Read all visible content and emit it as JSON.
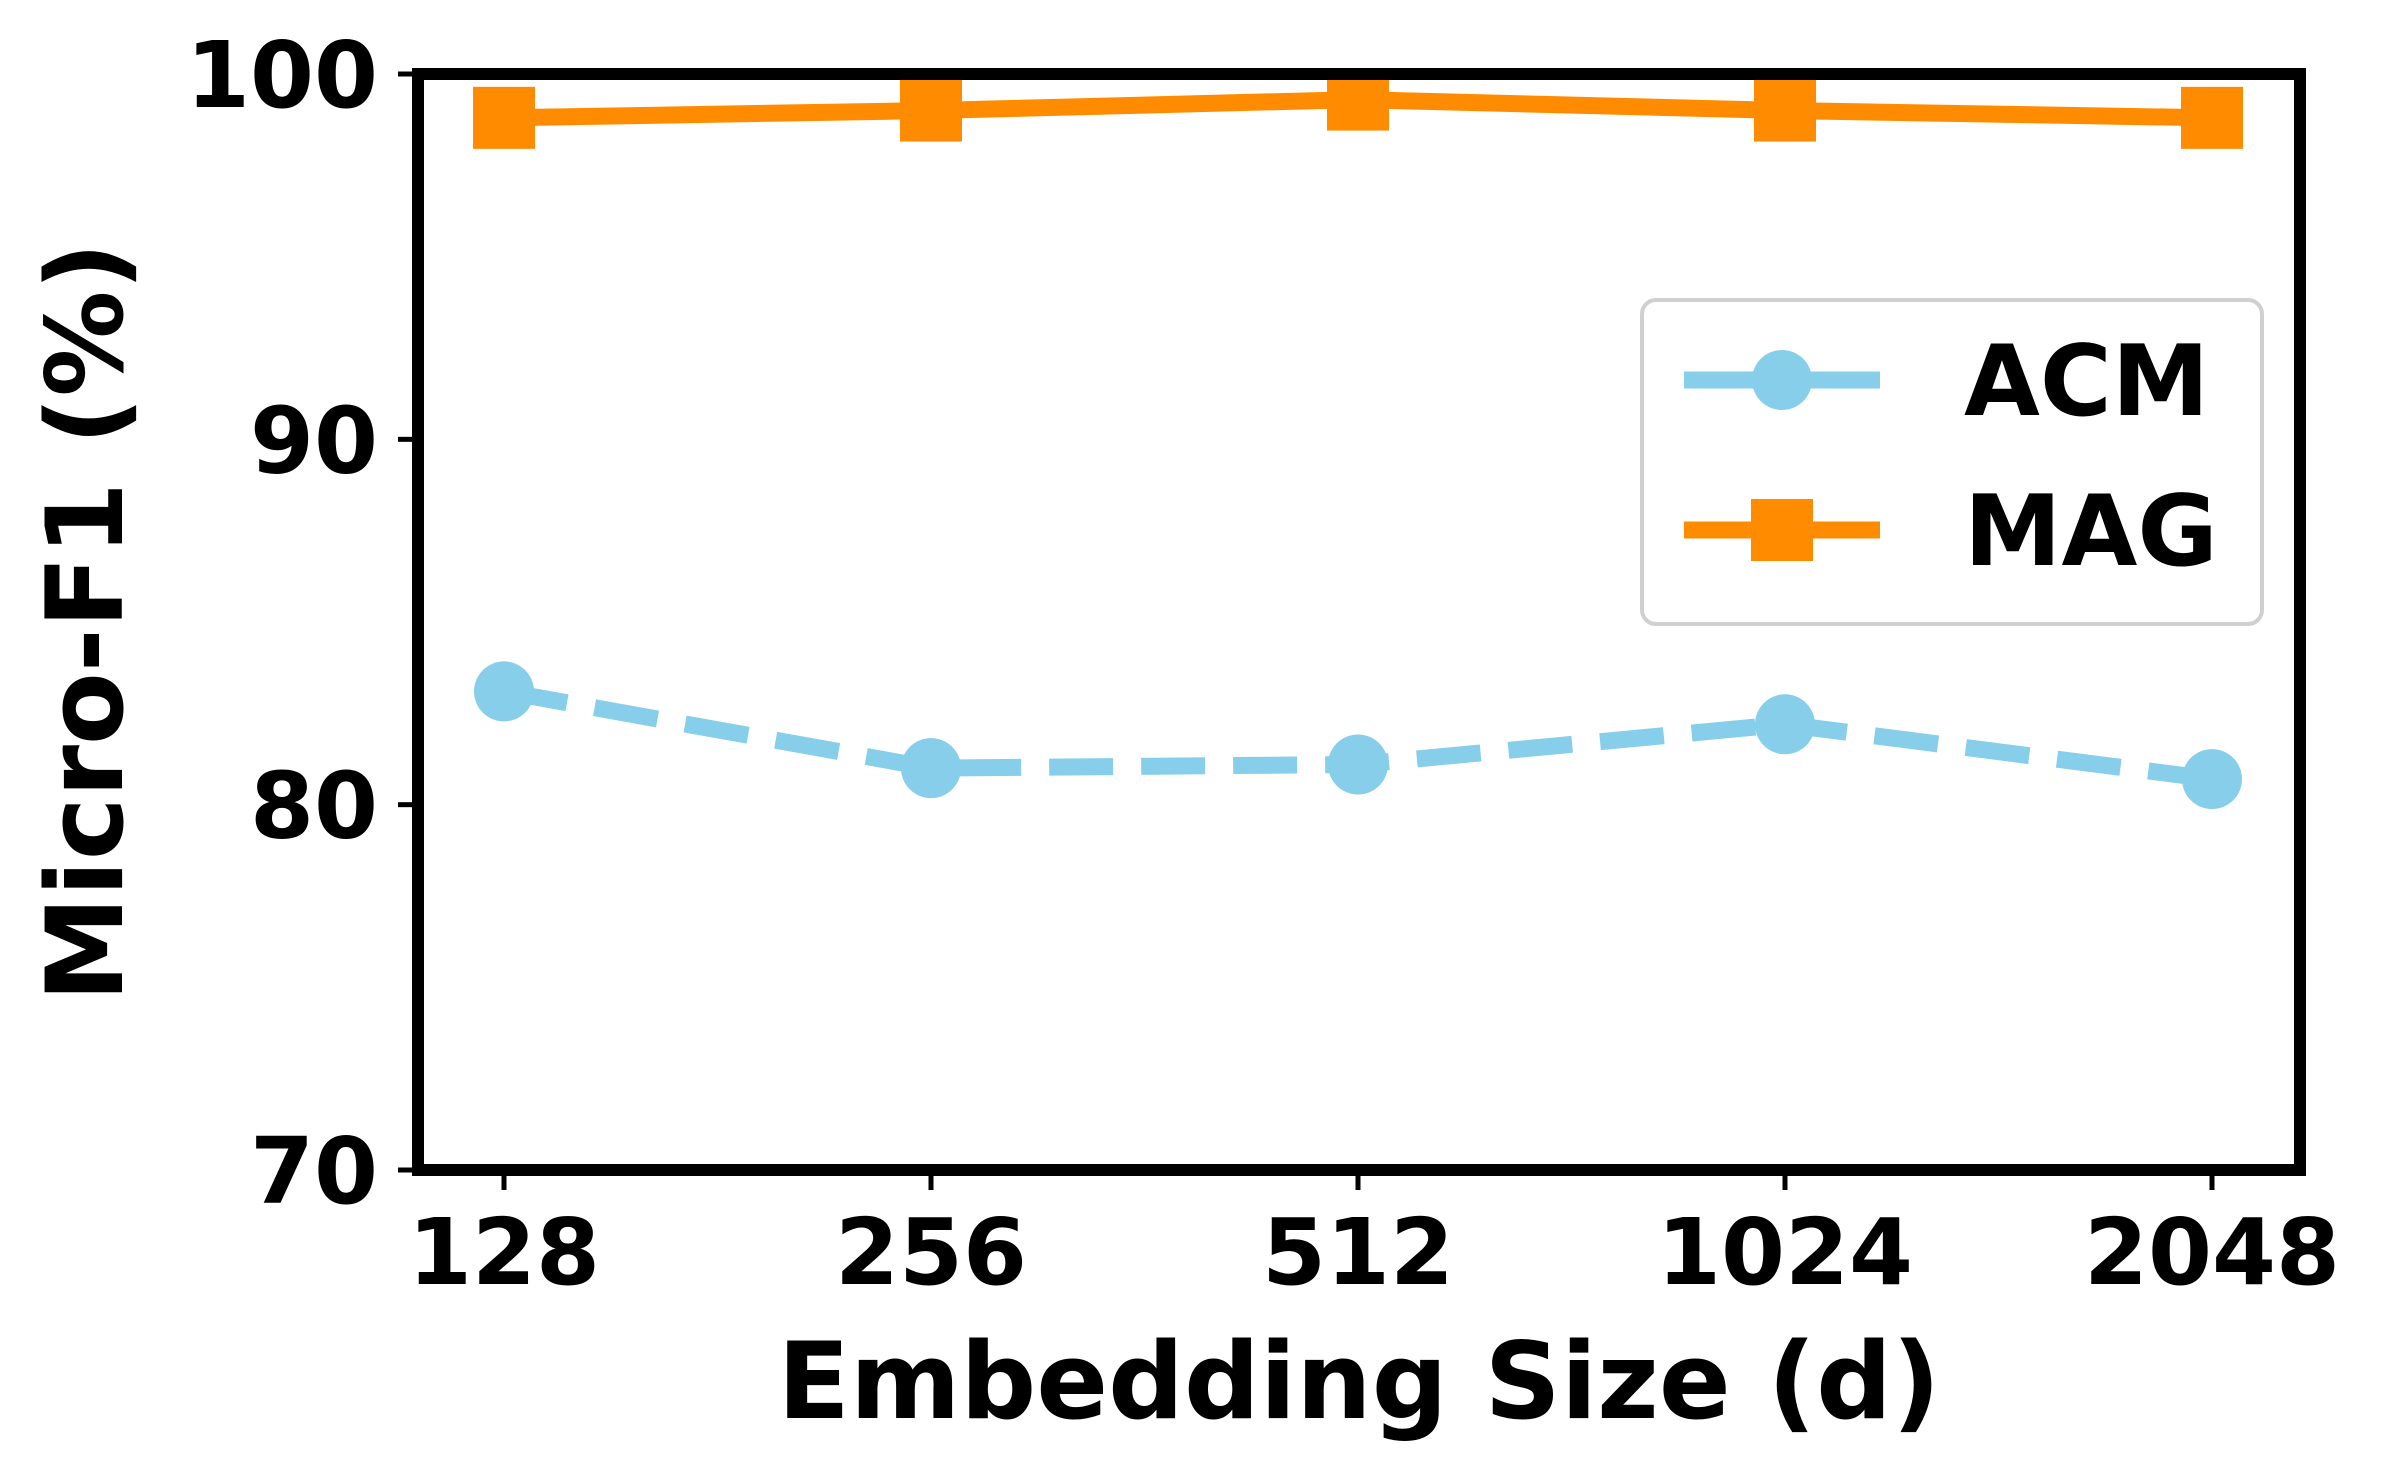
{
  "chart_data": {
    "type": "line",
    "title": "",
    "xlabel": "Embedding Size (d)",
    "ylabel": "Micro-F1 (%)",
    "categories": [
      "128",
      "256",
      "512",
      "1024",
      "2048"
    ],
    "ylim": [
      70,
      100
    ],
    "yticks": [
      70,
      80,
      90,
      100
    ],
    "grid": false,
    "legend_position": "right",
    "series": [
      {
        "name": "ACM",
        "values": [
          83.1,
          81.0,
          81.1,
          82.2,
          80.7
        ],
        "color": "#87CEEB",
        "marker": "circle",
        "linestyle": "dashed"
      },
      {
        "name": "MAG",
        "values": [
          98.8,
          99.0,
          99.3,
          99.0,
          98.8
        ],
        "color": "#FF8C00",
        "marker": "square",
        "linestyle": "solid"
      }
    ]
  }
}
